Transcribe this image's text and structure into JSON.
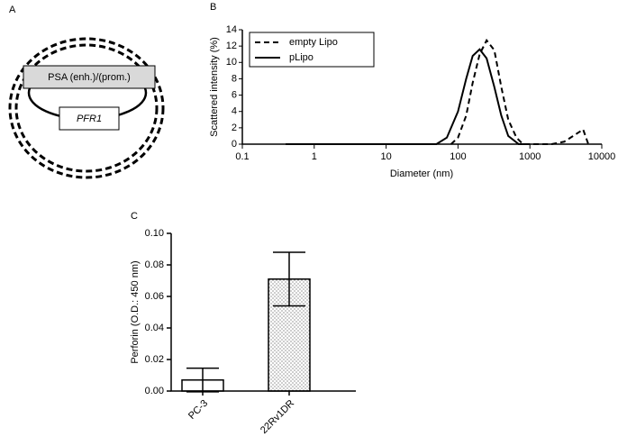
{
  "diagram": {
    "panel_label": "A",
    "promoter": "PSA (enh.)/(prom.)",
    "gene": "PFR1"
  },
  "chart_data": [
    {
      "type": "line",
      "panel_label": "B",
      "x_label": "Diameter (nm)",
      "y_label": "Scattered intensity (%)",
      "xlog": true,
      "xlim": [
        0.1,
        10000
      ],
      "xticks": [
        0.1,
        1,
        10,
        100,
        1000,
        10000
      ],
      "ylim": [
        0,
        14
      ],
      "yticks": [
        0,
        2,
        4,
        6,
        8,
        10,
        12,
        14
      ],
      "legend": "upper left",
      "series": [
        {
          "name": "empty Lipo",
          "color": "#000000",
          "line_style": "dashed",
          "x": [
            80,
            100,
            130,
            160,
            200,
            250,
            320,
            400,
            500,
            650,
            800,
            2000,
            3000,
            4000,
            5500,
            6500
          ],
          "values": [
            0,
            0.8,
            3.5,
            7.5,
            11,
            12.7,
            11.5,
            7,
            3,
            0.8,
            0,
            0,
            0.3,
            1,
            1.8,
            0
          ]
        },
        {
          "name": "pLipo",
          "color": "#000000",
          "line_style": "solid",
          "x": [
            0.4,
            10,
            50,
            70,
            100,
            130,
            160,
            200,
            250,
            320,
            400,
            500,
            700,
            1000
          ],
          "values": [
            0,
            0,
            0,
            0.8,
            4,
            8,
            10.8,
            11.6,
            10.5,
            7,
            3.5,
            1,
            0,
            0
          ]
        }
      ]
    },
    {
      "type": "bar",
      "panel_label": "C",
      "y_label": "Perforin (O.D.: 450 nm)",
      "categories": [
        "PC-3",
        "22Rv1DR"
      ],
      "values": [
        0.007,
        0.071
      ],
      "errors": [
        0.0075,
        0.017
      ],
      "fills": [
        "white",
        "dotted"
      ],
      "ylim": [
        0,
        0.1
      ],
      "yticks": [
        {
          "value": 0,
          "label": "0.00"
        },
        {
          "value": 0.02,
          "label": "0.02"
        },
        {
          "value": 0.04,
          "label": "0.04"
        },
        {
          "value": 0.06,
          "label": "0.06"
        },
        {
          "value": 0.08,
          "label": "0.08"
        },
        {
          "value": 0.1,
          "label": "0.10"
        }
      ]
    }
  ]
}
